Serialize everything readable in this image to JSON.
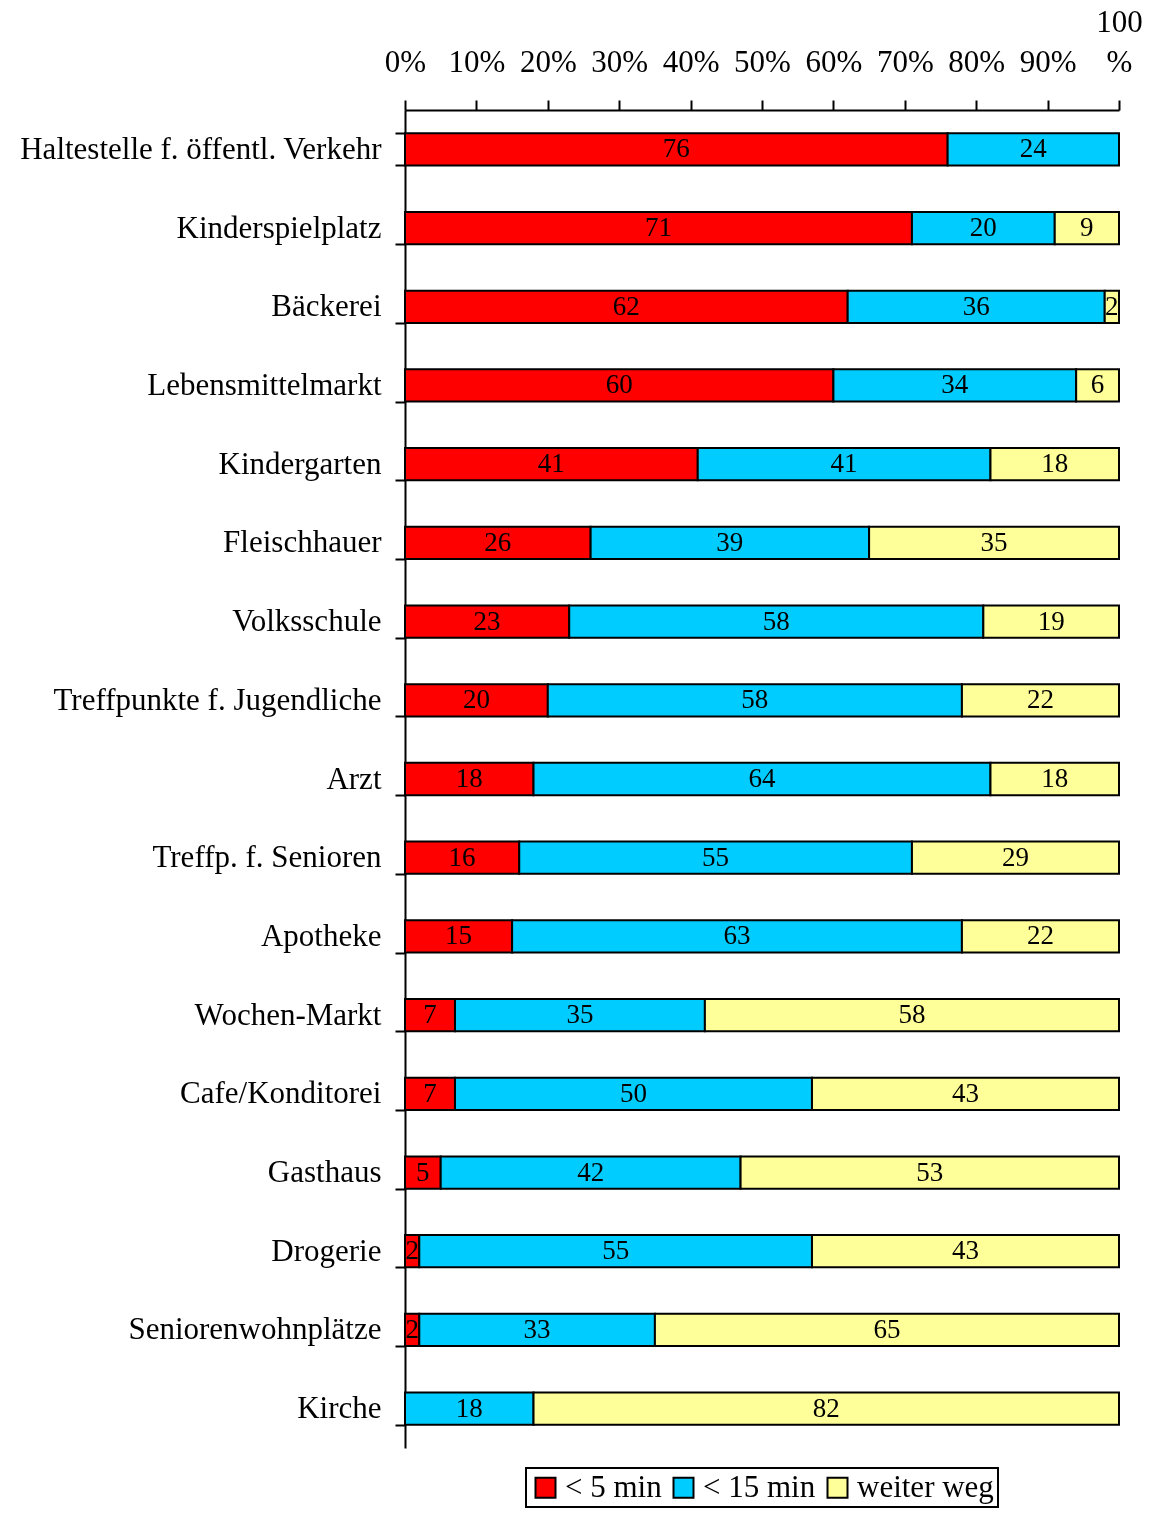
{
  "chart_data": {
    "type": "bar",
    "orientation": "horizontal",
    "stacked": true,
    "data_labels": true,
    "legend": "bottom",
    "categories": [
      "Haltestelle f. öffentl. Verkehr",
      "Kinderspielplatz",
      "Bäckerei",
      "Lebensmittelmarkt",
      "Kindergarten",
      "Fleischhauer",
      "Volksschule",
      "Treffpunkte f. Jugendliche",
      "Arzt",
      "Treffp. f. Senioren",
      "Apotheke",
      "Wochen-Markt",
      "Cafe/Konditorei",
      "Gasthaus",
      "Drogerie",
      "Seniorenwohnplätze",
      "Kirche"
    ],
    "series": [
      {
        "name": "< 5 min",
        "color": "#ff0000",
        "values": [
          76,
          71,
          62,
          60,
          41,
          26,
          23,
          20,
          18,
          16,
          15,
          7,
          7,
          5,
          2,
          2,
          null
        ]
      },
      {
        "name": "< 15 min",
        "color": "#00ccff",
        "values": [
          24,
          20,
          36,
          34,
          41,
          39,
          58,
          58,
          64,
          55,
          63,
          35,
          50,
          42,
          55,
          33,
          18
        ]
      },
      {
        "name": "weiter weg",
        "color": "#ffff99",
        "values": [
          null,
          9,
          2,
          6,
          18,
          35,
          19,
          22,
          18,
          29,
          22,
          58,
          43,
          53,
          43,
          65,
          82
        ]
      }
    ],
    "xlim": [
      0,
      100
    ],
    "xticks": [
      {
        "value": 0,
        "label": "0%"
      },
      {
        "value": 10,
        "label": "10%"
      },
      {
        "value": 20,
        "label": "20%"
      },
      {
        "value": 30,
        "label": "30%"
      },
      {
        "value": 40,
        "label": "40%"
      },
      {
        "value": 50,
        "label": "50%"
      },
      {
        "value": 60,
        "label": "60%"
      },
      {
        "value": 70,
        "label": "70%"
      },
      {
        "value": 80,
        "label": "80%"
      },
      {
        "value": 90,
        "label": "90%"
      },
      {
        "value": 100,
        "label": "100 %"
      }
    ]
  }
}
